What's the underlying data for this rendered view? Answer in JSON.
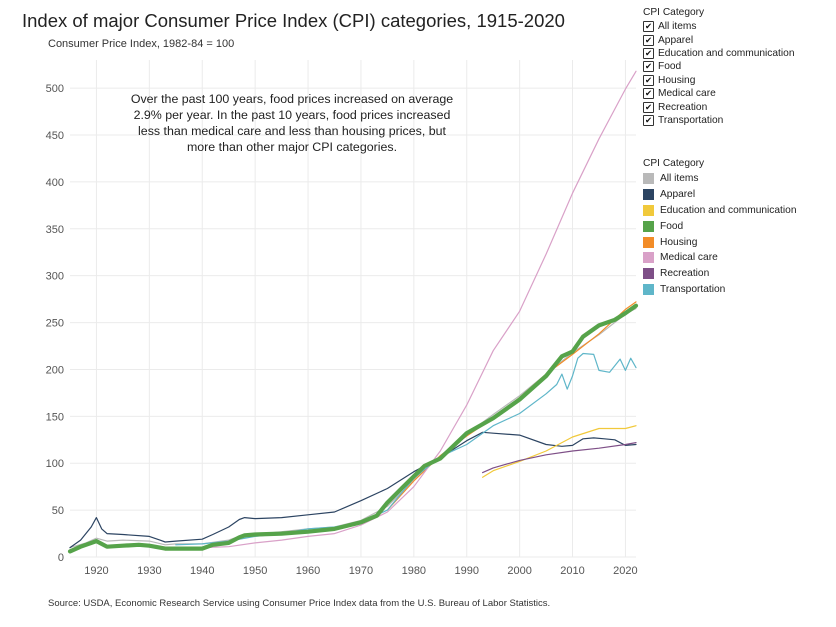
{
  "title": "Index of major Consumer Price Index (CPI) categories, 1915-2020",
  "subtitle": "Consumer Price Index, 1982-84 = 100",
  "annotation": "Over the past 100 years, food prices increased on average 2.9% per year. In the past 10 years, food prices increased less than medical care and less than housing prices, but more than other major CPI categories.",
  "source": "Source: USDA, Economic Research Service using Consumer Price Index data from the U.S. Bureau of Labor Statistics.",
  "filter_legend": {
    "title": "CPI Category",
    "check_mark": "✔",
    "items": [
      {
        "label": "All items",
        "checked": true
      },
      {
        "label": "Apparel",
        "checked": true
      },
      {
        "label": "Education and communication",
        "checked": true
      },
      {
        "label": "Food",
        "checked": true
      },
      {
        "label": "Housing",
        "checked": true
      },
      {
        "label": "Medical care",
        "checked": true
      },
      {
        "label": "Recreation",
        "checked": true
      },
      {
        "label": "Transportation",
        "checked": true
      }
    ]
  },
  "color_legend": {
    "title": "CPI Category",
    "items": [
      {
        "label": "All items",
        "color": "#b9b9b9"
      },
      {
        "label": "Apparel",
        "color": "#2c4462"
      },
      {
        "label": "Education and communication",
        "color": "#f1c93b"
      },
      {
        "label": "Food",
        "color": "#56a34a"
      },
      {
        "label": "Housing",
        "color": "#f28c28"
      },
      {
        "label": "Medical care",
        "color": "#d9a1c8"
      },
      {
        "label": "Recreation",
        "color": "#7e4f87"
      },
      {
        "label": "Transportation",
        "color": "#5fb6c9"
      }
    ]
  },
  "chart_data": {
    "type": "line",
    "xlim": [
      1915,
      2022
    ],
    "ylim": [
      0,
      530
    ],
    "x_ticks": [
      1920,
      1930,
      1940,
      1950,
      1960,
      1970,
      1980,
      1990,
      2000,
      2010,
      2020
    ],
    "y_ticks": [
      0,
      50,
      100,
      150,
      200,
      250,
      300,
      350,
      400,
      450,
      500
    ],
    "grid": true,
    "legend_position": "right",
    "series": [
      {
        "name": "All items",
        "color": "#b9b9b9",
        "width": 1.2,
        "x": [
          1915,
          1918,
          1920,
          1922,
          1925,
          1930,
          1933,
          1935,
          1940,
          1945,
          1948,
          1950,
          1955,
          1960,
          1965,
          1970,
          1975,
          1980,
          1985,
          1990,
          1995,
          2000,
          2005,
          2010,
          2015,
          2020,
          2022
        ],
        "values": [
          10,
          15,
          20,
          17,
          18,
          17,
          13,
          14,
          14,
          18,
          24,
          24,
          27,
          30,
          32,
          39,
          54,
          82,
          108,
          131,
          152,
          172,
          195,
          218,
          237,
          259,
          265
        ]
      },
      {
        "name": "Apparel",
        "color": "#2c4462",
        "width": 1.2,
        "x": [
          1915,
          1917,
          1919,
          1920,
          1921,
          1922,
          1925,
          1930,
          1932,
          1933,
          1935,
          1940,
          1942,
          1945,
          1947,
          1948,
          1950,
          1955,
          1960,
          1965,
          1970,
          1975,
          1980,
          1985,
          1990,
          1993,
          1995,
          2000,
          2005,
          2008,
          2010,
          2012,
          2014,
          2016,
          2018,
          2020,
          2022
        ],
        "values": [
          10,
          18,
          32,
          42,
          30,
          25,
          24,
          22,
          18,
          16,
          17,
          19,
          24,
          32,
          40,
          42,
          41,
          42,
          45,
          48,
          60,
          73,
          91,
          106,
          124,
          133,
          132,
          130,
          120,
          118,
          119,
          126,
          127,
          126,
          125,
          119,
          120
        ]
      },
      {
        "name": "Education and communication",
        "color": "#f1c93b",
        "width": 1.2,
        "x": [
          1993,
          1995,
          2000,
          2005,
          2010,
          2015,
          2020,
          2022
        ],
        "values": [
          85,
          92,
          102,
          113,
          128,
          137,
          137,
          140
        ]
      },
      {
        "name": "Housing",
        "color": "#f28c28",
        "width": 1.2,
        "x": [
          1975,
          1980,
          1985,
          1990,
          1995,
          2000,
          2005,
          2010,
          2015,
          2020,
          2022
        ],
        "values": [
          50,
          81,
          108,
          129,
          148,
          170,
          195,
          216,
          238,
          264,
          272
        ]
      },
      {
        "name": "Medical care",
        "color": "#d9a1c8",
        "width": 1.2,
        "x": [
          1935,
          1940,
          1945,
          1950,
          1955,
          1960,
          1965,
          1970,
          1975,
          1980,
          1985,
          1990,
          1995,
          2000,
          2005,
          2010,
          2015,
          2020,
          2022
        ],
        "values": [
          10,
          10,
          11,
          15,
          18,
          22,
          25,
          34,
          48,
          75,
          113,
          162,
          220,
          262,
          323,
          388,
          446,
          499,
          518
        ]
      },
      {
        "name": "Recreation",
        "color": "#7e4f87",
        "width": 1.2,
        "x": [
          1993,
          1995,
          2000,
          2005,
          2010,
          2015,
          2020,
          2022
        ],
        "values": [
          90,
          95,
          103,
          109,
          113,
          116,
          120,
          122
        ]
      },
      {
        "name": "Transportation",
        "color": "#5fb6c9",
        "width": 1.2,
        "x": [
          1935,
          1940,
          1945,
          1950,
          1955,
          1960,
          1965,
          1970,
          1975,
          1980,
          1985,
          1990,
          1995,
          2000,
          2005,
          2007,
          2008,
          2009,
          2010,
          2011,
          2012,
          2014,
          2015,
          2017,
          2019,
          2020,
          2021,
          2022
        ],
        "values": [
          13,
          14,
          17,
          22,
          25,
          30,
          32,
          37,
          50,
          84,
          107,
          120,
          140,
          153,
          174,
          184,
          195,
          179,
          193,
          212,
          217,
          216,
          199,
          197,
          211,
          199,
          212,
          202
        ]
      },
      {
        "name": "Food",
        "color": "#56a34a",
        "width": 4.2,
        "x": [
          1915,
          1917,
          1920,
          1922,
          1925,
          1928,
          1930,
          1933,
          1935,
          1940,
          1942,
          1945,
          1947,
          1948,
          1950,
          1955,
          1960,
          1965,
          1970,
          1973,
          1975,
          1978,
          1980,
          1982,
          1985,
          1990,
          1995,
          2000,
          2005,
          2008,
          2010,
          2012,
          2015,
          2018,
          2020,
          2022
        ],
        "values": [
          6,
          11,
          17,
          11,
          12,
          13,
          12,
          9,
          9,
          9,
          13,
          15,
          21,
          23,
          24,
          25,
          27,
          30,
          37,
          44,
          58,
          75,
          86,
          97,
          105,
          132,
          148,
          168,
          193,
          214,
          219,
          235,
          247,
          253,
          260,
          268
        ]
      }
    ]
  }
}
